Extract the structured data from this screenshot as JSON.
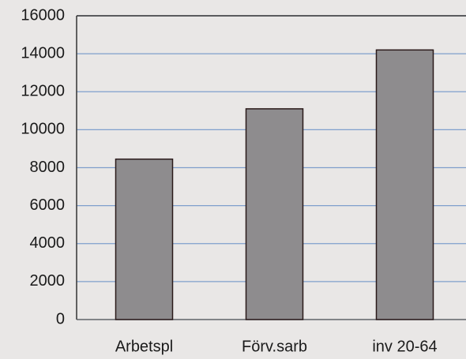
{
  "chart_data": {
    "type": "bar",
    "categories": [
      "Arbetspl",
      "Förv.sarb",
      "inv 20-64"
    ],
    "values": [
      8450,
      11100,
      14200
    ],
    "color": "#8e8c8e",
    "ylim": [
      0,
      16000
    ],
    "yticks": [
      0,
      2000,
      4000,
      6000,
      8000,
      10000,
      12000,
      14000,
      16000
    ],
    "grid": true
  }
}
